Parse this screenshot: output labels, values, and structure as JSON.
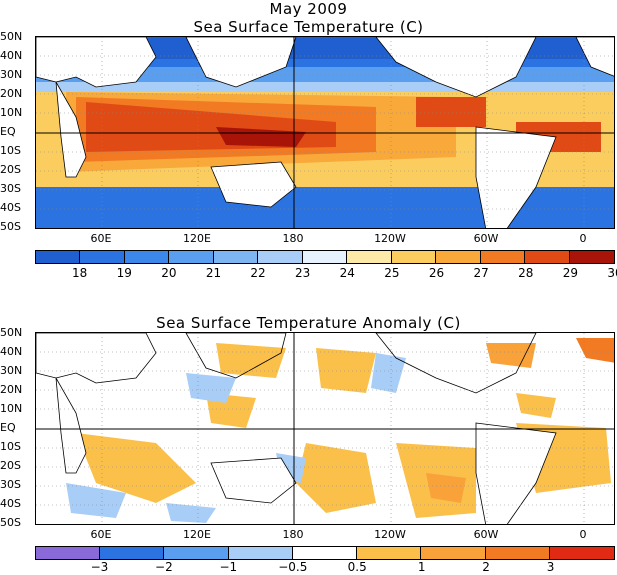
{
  "month_title": "May 2009",
  "panels": [
    {
      "title": "Sea Surface Temperature (C)",
      "colorbar": {
        "colors": [
          "#1f5fd0",
          "#2a73e0",
          "#3c87ea",
          "#5a9ef0",
          "#7db5f3",
          "#a8cdf6",
          "#e6f3ff",
          "#fde9a8",
          "#fbcd5e",
          "#f9a83a",
          "#f27a22",
          "#e04a14",
          "#a81408"
        ],
        "labels": [
          "18",
          "19",
          "20",
          "21",
          "22",
          "23",
          "24",
          "25",
          "26",
          "27",
          "28",
          "29",
          "30"
        ]
      }
    },
    {
      "title": "Sea Surface Temperature Anomaly (C)",
      "colorbar": {
        "colors": [
          "#8a6ad8",
          "#2a73e0",
          "#5a9ef0",
          "#a8cdf6",
          "#ffffff",
          "#fbc04a",
          "#f9a23a",
          "#f27a22",
          "#e02a14"
        ],
        "labels": [
          "−3",
          "−2",
          "−1",
          "−0.5",
          "0.5",
          "1",
          "2",
          "3"
        ]
      }
    }
  ],
  "lat_labels": [
    "50N",
    "40N",
    "30N",
    "20N",
    "10N",
    "EQ",
    "10S",
    "20S",
    "30S",
    "40S",
    "50S"
  ],
  "lon_labels": [
    "60E",
    "120E",
    "180",
    "120W",
    "60W",
    "0"
  ]
}
